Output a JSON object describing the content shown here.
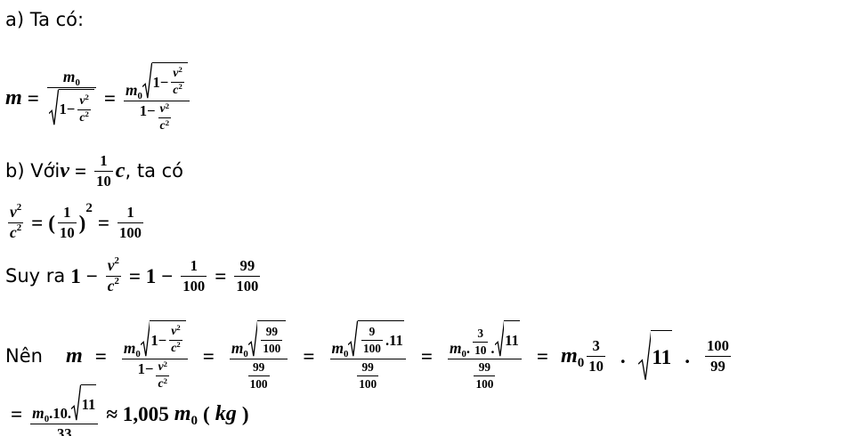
{
  "lines": [
    [
      {
        "t": "a) Ta có:"
      }
    ],
    [
      {
        "v": "m"
      },
      {
        "o": "="
      },
      {
        "f": [
          [
            {
              "b": [
                [
                  {
                    "v": "m"
                  }
                ],
                [
                  {
                    "o": "0"
                  }
                ]
              ]
            }
          ],
          [
            {
              "r": [
                {
                  "o": "1−"
                },
                {
                  "f": [
                    [
                      {
                        "p": [
                          [
                            {
                              "v": "v"
                            }
                          ],
                          [
                            {
                              "o": "2"
                            }
                          ]
                        ]
                      }
                    ],
                    [
                      {
                        "p": [
                          [
                            {
                              "v": "c"
                            }
                          ],
                          [
                            {
                              "o": "2"
                            }
                          ]
                        ]
                      }
                    ]
                  ]
                }
              ]
            }
          ]
        ]
      },
      {
        "o": "="
      },
      {
        "f": [
          [
            {
              "b": [
                [
                  {
                    "v": "m"
                  }
                ],
                [
                  {
                    "o": "0"
                  }
                ]
              ]
            },
            {
              "r": [
                {
                  "o": "1−"
                },
                {
                  "f": [
                    [
                      {
                        "p": [
                          [
                            {
                              "v": "v"
                            }
                          ],
                          [
                            {
                              "o": "2"
                            }
                          ]
                        ]
                      }
                    ],
                    [
                      {
                        "p": [
                          [
                            {
                              "v": "c"
                            }
                          ],
                          [
                            {
                              "o": "2"
                            }
                          ]
                        ]
                      }
                    ]
                  ]
                }
              ]
            }
          ],
          [
            {
              "o": "1−"
            },
            {
              "f": [
                [
                  {
                    "p": [
                      [
                        {
                          "v": "v"
                        }
                      ],
                      [
                        {
                          "o": "2"
                        }
                      ]
                    ]
                  }
                ],
                [
                  {
                    "p": [
                      [
                        {
                          "v": "c"
                        }
                      ],
                      [
                        {
                          "o": "2"
                        }
                      ]
                    ]
                  }
                ]
              ]
            }
          ]
        ]
      }
    ],
    [
      {
        "t": "b) Với "
      },
      {
        "v": "v"
      },
      {
        "o": "="
      },
      {
        "f": [
          [
            {
              "o": "1"
            }
          ],
          [
            {
              "o": "10"
            }
          ]
        ]
      },
      {
        "v": "c"
      },
      {
        "t": ", ta có"
      }
    ],
    [
      {
        "f": [
          [
            {
              "p": [
                [
                  {
                    "v": "v"
                  }
                ],
                [
                  {
                    "o": "2"
                  }
                ]
              ]
            }
          ],
          [
            {
              "p": [
                [
                  {
                    "v": "c"
                  }
                ],
                [
                  {
                    "o": "2"
                  }
                ]
              ]
            }
          ]
        ]
      },
      {
        "o": "="
      },
      {
        "p": [
          [
            {
              "o": "("
            },
            {
              "f": [
                [
                  {
                    "o": "1"
                  }
                ],
                [
                  {
                    "o": "10"
                  }
                ]
              ]
            },
            {
              "o": ")"
            }
          ],
          [
            {
              "o": "2"
            }
          ]
        ]
      },
      {
        "o": "="
      },
      {
        "f": [
          [
            {
              "o": "1"
            }
          ],
          [
            {
              "o": "100"
            }
          ]
        ]
      }
    ],
    [
      {
        "t": "Suy ra "
      },
      {
        "o": "1 −"
      },
      {
        "f": [
          [
            {
              "p": [
                [
                  {
                    "v": "v"
                  }
                ],
                [
                  {
                    "o": "2"
                  }
                ]
              ]
            }
          ],
          [
            {
              "p": [
                [
                  {
                    "v": "c"
                  }
                ],
                [
                  {
                    "o": "2"
                  }
                ]
              ]
            }
          ]
        ]
      },
      {
        "o": "= 1 −"
      },
      {
        "f": [
          [
            {
              "o": "1"
            }
          ],
          [
            {
              "o": "100"
            }
          ]
        ]
      },
      {
        "o": "="
      },
      {
        "f": [
          [
            {
              "o": "99"
            }
          ],
          [
            {
              "o": "100"
            }
          ]
        ]
      }
    ],
    [
      {
        "t": "Nên"
      },
      {
        "v": "m"
      },
      {
        "o": "="
      },
      {
        "f": [
          [
            {
              "b": [
                [
                  {
                    "v": "m"
                  }
                ],
                [
                  {
                    "o": "0"
                  }
                ]
              ]
            },
            {
              "r": [
                {
                  "o": "1−"
                },
                {
                  "f": [
                    [
                      {
                        "p": [
                          [
                            {
                              "v": "v"
                            }
                          ],
                          [
                            {
                              "o": "2"
                            }
                          ]
                        ]
                      }
                    ],
                    [
                      {
                        "p": [
                          [
                            {
                              "v": "c"
                            }
                          ],
                          [
                            {
                              "o": "2"
                            }
                          ]
                        ]
                      }
                    ]
                  ]
                }
              ]
            }
          ],
          [
            {
              "o": "1−"
            },
            {
              "f": [
                [
                  {
                    "p": [
                      [
                        {
                          "v": "v"
                        }
                      ],
                      [
                        {
                          "o": "2"
                        }
                      ]
                    ]
                  }
                ],
                [
                  {
                    "p": [
                      [
                        {
                          "v": "c"
                        }
                      ],
                      [
                        {
                          "o": "2"
                        }
                      ]
                    ]
                  }
                ]
              ]
            }
          ]
        ]
      },
      {
        "o": "="
      },
      {
        "f": [
          [
            {
              "b": [
                [
                  {
                    "v": "m"
                  }
                ],
                [
                  {
                    "o": "0"
                  }
                ]
              ]
            },
            {
              "r": [
                {
                  "f": [
                    [
                      {
                        "o": "99"
                      }
                    ],
                    [
                      {
                        "o": "100"
                      }
                    ]
                  ]
                }
              ]
            }
          ],
          [
            {
              "f": [
                [
                  {
                    "o": "99"
                  }
                ],
                [
                  {
                    "o": "100"
                  }
                ]
              ]
            }
          ]
        ]
      },
      {
        "o": "="
      },
      {
        "f": [
          [
            {
              "b": [
                [
                  {
                    "v": "m"
                  }
                ],
                [
                  {
                    "o": "0"
                  }
                ]
              ]
            },
            {
              "r": [
                {
                  "f": [
                    [
                      {
                        "o": "9"
                      }
                    ],
                    [
                      {
                        "o": "100"
                      }
                    ]
                  ]
                },
                {
                  "o": ".11"
                }
              ]
            }
          ],
          [
            {
              "f": [
                [
                  {
                    "o": "99"
                  }
                ],
                [
                  {
                    "o": "100"
                  }
                ]
              ]
            }
          ]
        ]
      },
      {
        "o": "="
      },
      {
        "f": [
          [
            {
              "b": [
                [
                  {
                    "v": "m"
                  }
                ],
                [
                  {
                    "o": "0"
                  }
                ]
              ]
            },
            {
              "o": "."
            },
            {
              "f": [
                [
                  {
                    "o": "3"
                  }
                ],
                [
                  {
                    "o": "10"
                  }
                ]
              ]
            },
            {
              "o": "."
            },
            {
              "r": [
                {
                  "o": "11"
                }
              ]
            }
          ],
          [
            {
              "f": [
                [
                  {
                    "o": "99"
                  }
                ],
                [
                  {
                    "o": "100"
                  }
                ]
              ]
            }
          ]
        ]
      },
      {
        "o": "="
      },
      {
        "b": [
          [
            {
              "v": "m"
            }
          ],
          [
            {
              "o": "0"
            }
          ]
        ]
      },
      {
        "f": [
          [
            {
              "o": "3"
            }
          ],
          [
            {
              "o": "10"
            }
          ]
        ]
      },
      {
        "o": "."
      },
      {
        "r": [
          {
            "o": "11"
          }
        ]
      },
      {
        "o": "."
      },
      {
        "f": [
          [
            {
              "o": "100"
            }
          ],
          [
            {
              "o": "99"
            }
          ]
        ]
      }
    ],
    [
      {
        "o": "="
      },
      {
        "f": [
          [
            {
              "b": [
                [
                  {
                    "v": "m"
                  }
                ],
                [
                  {
                    "o": "0"
                  }
                ]
              ]
            },
            {
              "o": ".10."
            },
            {
              "r": [
                {
                  "o": "11"
                }
              ]
            }
          ],
          [
            {
              "o": "33"
            }
          ]
        ]
      },
      {
        "o": "≈ 1,005"
      },
      {
        "b": [
          [
            {
              "v": "m"
            }
          ],
          [
            {
              "o": "0"
            }
          ]
        ]
      },
      {
        "o": "("
      },
      {
        "v": "kg"
      },
      {
        "o": ")"
      }
    ]
  ]
}
